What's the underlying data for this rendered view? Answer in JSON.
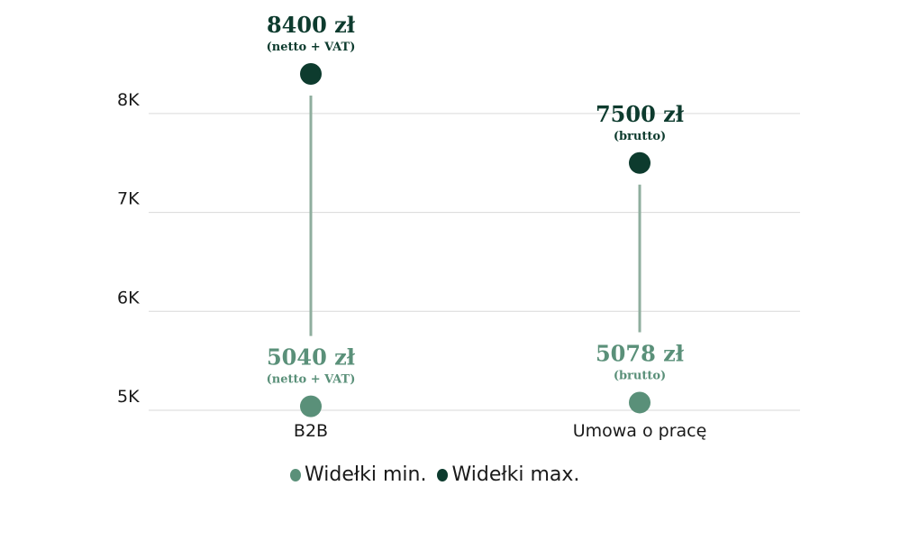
{
  "chart_data": {
    "type": "dumbbell",
    "categories": [
      "B2B",
      "Umowa o pracę"
    ],
    "series": [
      {
        "name": "Widełki min.",
        "values": [
          5040,
          5078
        ],
        "labels": [
          "5040 zł",
          "5078 zł"
        ],
        "sublabels": [
          "(netto + VAT)",
          "(brutto)"
        ],
        "color": "#5a9079"
      },
      {
        "name": "Widełki max.",
        "values": [
          8400,
          7500
        ],
        "labels": [
          "8400 zł",
          "7500 zł"
        ],
        "sublabels": [
          "(netto + VAT)",
          "(brutto)"
        ],
        "color": "#0d3b2e"
      }
    ],
    "ylim": [
      5000,
      8400
    ],
    "yticks": [
      5000,
      6000,
      7000,
      8000
    ],
    "ytick_labels": [
      "5K",
      "6K",
      "7K",
      "8K"
    ],
    "grid": true,
    "connector_color": "#8fae9e",
    "legend_position": "bottom"
  }
}
